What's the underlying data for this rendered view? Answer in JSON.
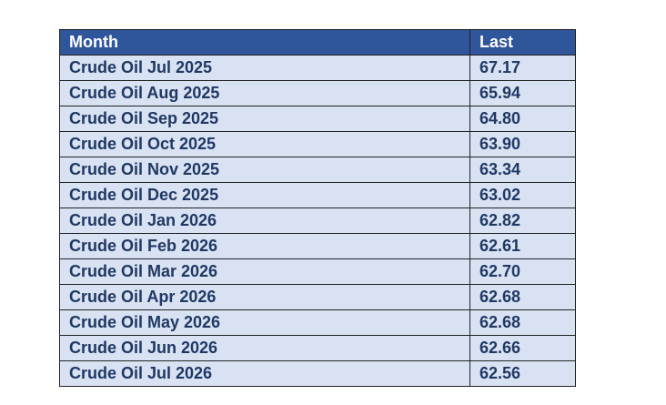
{
  "table": {
    "headers": [
      "Month",
      "Last"
    ],
    "rows": [
      [
        "Crude Oil Jul 2025",
        "67.17"
      ],
      [
        "Crude Oil Aug 2025",
        "65.94"
      ],
      [
        "Crude Oil Sep 2025",
        "64.80"
      ],
      [
        "Crude Oil Oct 2025",
        "63.90"
      ],
      [
        "Crude Oil Nov 2025",
        "63.34"
      ],
      [
        "Crude Oil Dec 2025",
        "63.02"
      ],
      [
        "Crude Oil Jan 2026",
        "62.82"
      ],
      [
        "Crude Oil Feb 2026",
        "62.61"
      ],
      [
        "Crude Oil Mar 2026",
        "62.70"
      ],
      [
        "Crude Oil Apr 2026",
        "62.68"
      ],
      [
        "Crude Oil May 2026",
        "62.68"
      ],
      [
        "Crude Oil Jun 2026",
        "62.66"
      ],
      [
        "Crude Oil Jul 2026",
        "62.56"
      ]
    ]
  },
  "colors": {
    "header_background": "#2f559a",
    "header_text": "#ffffff",
    "cell_background": "#d9e2f3",
    "cell_text": "#1f3864",
    "border": "#222222"
  }
}
